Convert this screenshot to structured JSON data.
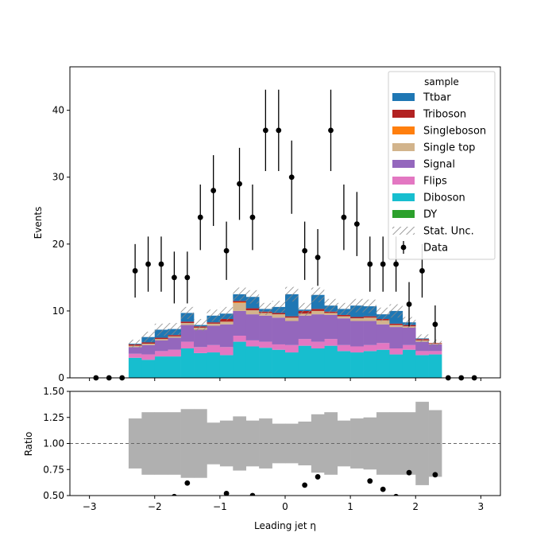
{
  "chart_data": [
    {
      "type": "bar",
      "stacked": true,
      "xlabel": "Leading jet  η",
      "ylabel": "Events",
      "xlim": [
        -3.3,
        3.3
      ],
      "ylim": [
        0,
        46.5
      ],
      "yticks": [
        0,
        10,
        20,
        30,
        40
      ],
      "xticks": [
        -3,
        -2,
        -1,
        0,
        1,
        2,
        3
      ],
      "legend": {
        "title": "sample",
        "placement": "top-right"
      },
      "bin_edges": [
        -2.4,
        -2.2,
        -2.0,
        -1.8,
        -1.6,
        -1.4,
        -1.2,
        -1.0,
        -0.8,
        -0.6,
        -0.4,
        -0.2,
        0.0,
        0.2,
        0.4,
        0.6,
        0.8,
        1.0,
        1.2,
        1.4,
        1.6,
        1.8,
        2.0,
        2.2,
        2.4
      ],
      "series": [
        {
          "name": "Diboson",
          "color": "#17becf",
          "values": [
            3.0,
            2.7,
            3.2,
            3.2,
            4.4,
            3.7,
            3.8,
            3.4,
            5.4,
            4.7,
            4.5,
            4.2,
            3.8,
            4.8,
            4.4,
            4.8,
            4.0,
            3.8,
            4.0,
            4.2,
            3.5,
            4.2,
            3.4,
            3.5
          ]
        },
        {
          "name": "Flips",
          "color": "#e377c2",
          "values": [
            0.6,
            0.8,
            0.8,
            1.0,
            1.0,
            0.9,
            1.1,
            1.2,
            0.9,
            0.9,
            0.9,
            0.8,
            1.1,
            1.0,
            1.0,
            1.0,
            0.9,
            0.9,
            0.9,
            1.0,
            0.9,
            0.7,
            0.6,
            0.5
          ]
        },
        {
          "name": "Signal",
          "color": "#9467bd",
          "values": [
            1.0,
            1.4,
            1.6,
            1.8,
            2.5,
            2.6,
            2.9,
            3.4,
            3.7,
            3.9,
            3.9,
            4.0,
            3.6,
            3.5,
            4.1,
            3.6,
            4.0,
            3.8,
            3.6,
            2.8,
            3.2,
            2.6,
            1.4,
            1.0
          ]
        },
        {
          "name": "Single top",
          "color": "#d2b48c",
          "values": [
            0.2,
            0.2,
            0.2,
            0.2,
            0.3,
            0.3,
            0.3,
            0.4,
            1.2,
            0.6,
            0.4,
            0.5,
            0.5,
            0.3,
            0.5,
            0.3,
            0.3,
            0.4,
            0.5,
            0.6,
            0.3,
            0.2,
            0.2,
            0.1
          ]
        },
        {
          "name": "Singleboson",
          "color": "#ff7f0e",
          "values": [
            0.0,
            0.0,
            0.0,
            0.0,
            0.0,
            0.0,
            0.0,
            0.0,
            0.1,
            0.0,
            0.0,
            0.0,
            0.0,
            0.0,
            0.0,
            0.0,
            0.0,
            0.0,
            0.0,
            0.0,
            0.0,
            0.0,
            0.0,
            0.0
          ]
        },
        {
          "name": "Triboson",
          "color": "#b22222",
          "values": [
            0.2,
            0.2,
            0.2,
            0.2,
            0.2,
            0.2,
            0.2,
            0.4,
            0.2,
            0.3,
            0.2,
            0.2,
            0.2,
            0.4,
            0.3,
            0.2,
            0.2,
            0.2,
            0.2,
            0.2,
            0.2,
            0.2,
            0.2,
            0.1
          ]
        },
        {
          "name": "Ttbar",
          "color": "#1f77b4",
          "values": [
            0.1,
            0.8,
            1.2,
            0.9,
            1.3,
            0.2,
            1.0,
            0.8,
            1.0,
            1.7,
            0.4,
            0.9,
            3.3,
            0.2,
            2.1,
            0.9,
            0.9,
            1.7,
            1.5,
            0.7,
            1.9,
            0.4,
            0.1,
            0.0
          ]
        },
        {
          "name": "DY",
          "color": "#2ca02c",
          "values": [
            0,
            0,
            0,
            0,
            0,
            0,
            0,
            0,
            0,
            0,
            0,
            0,
            0,
            0,
            0,
            0,
            0,
            0,
            0,
            0,
            0,
            0,
            0,
            0
          ]
        }
      ],
      "stat_unc": {
        "name": "Stat. Unc.",
        "values": [
          0.6,
          0.8,
          0.9,
          0.9,
          0.9,
          0.9,
          0.9,
          1.0,
          1.0,
          1.0,
          0.9,
          0.9,
          1.1,
          1.0,
          1.1,
          1.0,
          0.9,
          1.0,
          1.0,
          1.0,
          1.0,
          0.8,
          0.6,
          0.5
        ]
      },
      "data": {
        "name": "Data",
        "x": [
          -2.9,
          -2.7,
          -2.5,
          -2.3,
          -2.1,
          -1.9,
          -1.7,
          -1.5,
          -1.3,
          -1.1,
          -0.9,
          -0.7,
          -0.5,
          -0.3,
          -0.1,
          0.1,
          0.3,
          0.5,
          0.7,
          0.9,
          1.1,
          1.3,
          1.5,
          1.7,
          1.9,
          2.1,
          2.3,
          2.5,
          2.7,
          2.9
        ],
        "y": [
          0,
          0,
          0,
          16,
          17,
          17,
          15,
          15,
          24,
          28,
          19,
          29,
          24,
          37,
          37,
          30,
          19,
          18,
          37,
          24,
          23,
          17,
          17,
          17,
          11,
          16,
          8,
          0,
          0,
          0
        ]
      },
      "legend_order": [
        "Ttbar",
        "Triboson",
        "Singleboson",
        "Single top",
        "Signal",
        "Flips",
        "Diboson",
        "DY",
        "Stat. Unc.",
        "Data"
      ]
    },
    {
      "type": "scatter",
      "xlabel": "Leading jet  η",
      "ylabel": "Ratio",
      "xlim": [
        -3.3,
        3.3
      ],
      "ylim": [
        0.5,
        1.5
      ],
      "yticks": [
        "0.50",
        "0.75",
        "1.00",
        "1.25",
        "1.50"
      ],
      "xticks": [
        "−3",
        "−2",
        "−1",
        "0",
        "1",
        "2",
        "3"
      ],
      "reference_line": 1.0,
      "unc_band": [
        0.24,
        0.3,
        0.3,
        0.3,
        0.33,
        0.33,
        0.2,
        0.22,
        0.26,
        0.22,
        0.24,
        0.19,
        0.19,
        0.21,
        0.28,
        0.3,
        0.22,
        0.24,
        0.25,
        0.3,
        0.3,
        0.3,
        0.4,
        0.32
      ],
      "ratio_points": {
        "x": [
          -1.7,
          -1.5,
          -0.9,
          -0.5,
          0.3,
          0.5,
          1.3,
          1.5,
          1.7,
          1.9,
          2.3
        ],
        "y": [
          0.49,
          0.62,
          0.52,
          0.5,
          0.6,
          0.68,
          0.64,
          0.56,
          0.49,
          0.72,
          0.7
        ]
      }
    }
  ]
}
